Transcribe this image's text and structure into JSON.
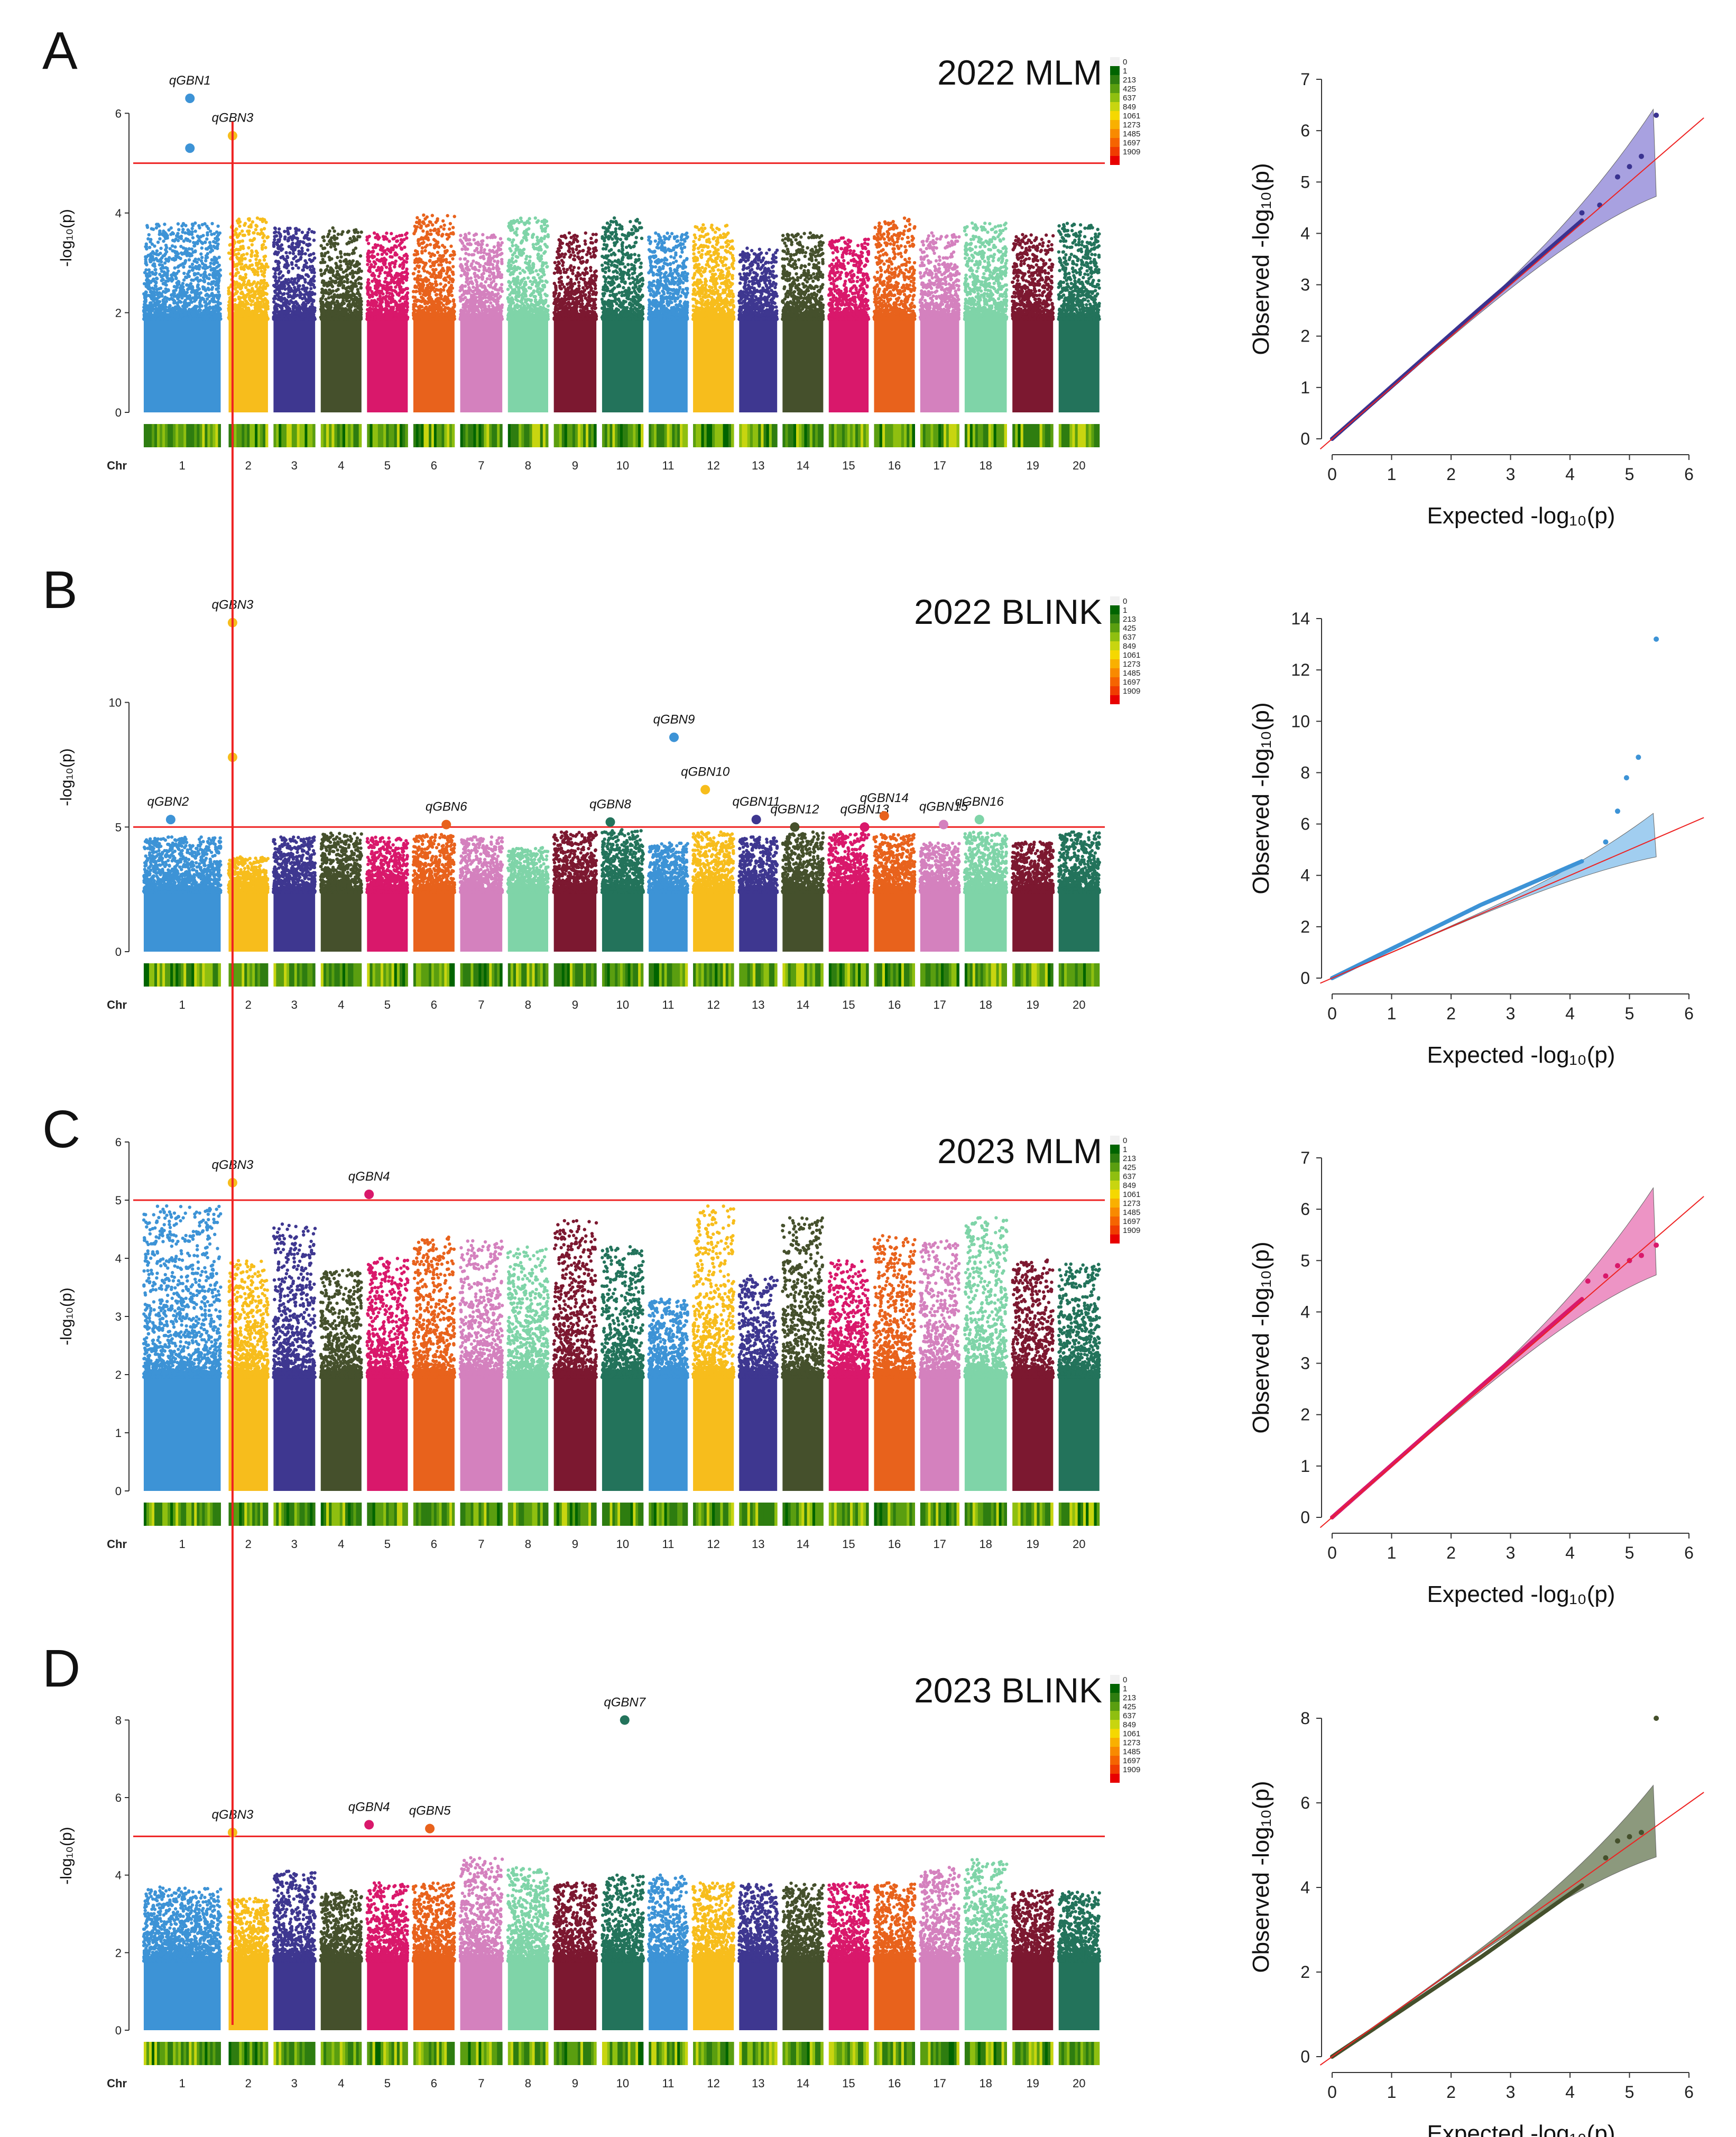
{
  "colors": {
    "chr": [
      "#3d93d6",
      "#f7bd1c",
      "#3e3790",
      "#45502c",
      "#d9186b",
      "#e8621c",
      "#d481be",
      "#7fd4a8",
      "#7c1830",
      "#23735b"
    ],
    "threshold": "#ee2222",
    "qq_fill": {
      "A": "#7a6fd0",
      "B": "#6eb3e8",
      "C": "#e35aa6",
      "D": "#4f6238"
    },
    "qq_point": {
      "A": "#3a3390",
      "B": "#3d93d6",
      "C": "#d9186b",
      "D": "#45502c"
    },
    "legend": [
      "#f1f1f1",
      "#006400",
      "#2e7d10",
      "#5a9e10",
      "#8fbf10",
      "#c8d510",
      "#f5d800",
      "#f9b000",
      "#f88a00",
      "#f56400",
      "#f03c00",
      "#e80000"
    ]
  },
  "chromosomes": [
    "1",
    "2",
    "3",
    "4",
    "5",
    "6",
    "7",
    "8",
    "9",
    "10",
    "11",
    "12",
    "13",
    "14",
    "15",
    "16",
    "17",
    "18",
    "19",
    "20"
  ],
  "chr_axis_label": "Chr",
  "ylabel": "-log₁₀(p)",
  "qq_xlabel": "Expected  -log₁₀(p)",
  "qq_ylabel": "Observed  -log₁₀(p)",
  "legend_labels": [
    "0",
    "1",
    "213",
    "425",
    "637",
    "849",
    "1061",
    "1273",
    "1485",
    "1697",
    "1909"
  ],
  "chart_data": [
    {
      "type": "scatter",
      "panel": "A",
      "title": "2022 MLM",
      "ylim": [
        0,
        7
      ],
      "yticks": [
        0,
        2,
        4,
        6
      ],
      "threshold": 5,
      "noise": {
        "base": 2.2,
        "peak": [
          3.8,
          3.9,
          3.7,
          3.7,
          3.6,
          4.0,
          3.6,
          3.9,
          3.6,
          3.9,
          3.6,
          3.8,
          3.3,
          3.6,
          3.5,
          3.9,
          3.6,
          3.8,
          3.6,
          3.8
        ]
      },
      "labeled_snps": [
        {
          "name": "qGBN1",
          "chr": 1,
          "pos": 0.6,
          "value": 6.3
        },
        {
          "name": "",
          "chr": 1,
          "pos": 0.6,
          "value": 5.3
        },
        {
          "name": "qGBN3",
          "chr": 2,
          "pos": 0.1,
          "value": 5.55
        }
      ],
      "qq": {
        "xlim": [
          0,
          6
        ],
        "ylim": [
          0,
          7
        ],
        "xticks": [
          0,
          1,
          2,
          3,
          4,
          5,
          6
        ],
        "yticks": [
          0,
          1,
          2,
          3,
          4,
          5,
          6,
          7
        ],
        "points_tail": [
          [
            4.2,
            4.4
          ],
          [
            4.5,
            4.55
          ],
          [
            4.8,
            5.1
          ],
          [
            5.0,
            5.3
          ],
          [
            5.2,
            5.5
          ],
          [
            5.45,
            6.3
          ]
        ]
      }
    },
    {
      "type": "scatter",
      "panel": "B",
      "title": "2022 BLINK",
      "ylim": [
        0,
        14
      ],
      "yticks": [
        0,
        5,
        10
      ],
      "threshold": 5,
      "noise": {
        "base": 2.8,
        "peak": [
          4.6,
          3.8,
          4.6,
          4.8,
          4.6,
          4.7,
          4.6,
          4.2,
          4.8,
          4.9,
          4.4,
          4.8,
          4.6,
          4.8,
          4.8,
          4.7,
          4.4,
          4.8,
          4.4,
          4.8
        ]
      },
      "labeled_snps": [
        {
          "name": "qGBN2",
          "chr": 1,
          "pos": 0.35,
          "value": 5.3
        },
        {
          "name": "qGBN3",
          "chr": 2,
          "pos": 0.1,
          "value": 13.2
        },
        {
          "name": "",
          "chr": 2,
          "pos": 0.1,
          "value": 7.8
        },
        {
          "name": "qGBN6",
          "chr": 6,
          "pos": 0.8,
          "value": 5.1
        },
        {
          "name": "qGBN8",
          "chr": 10,
          "pos": 0.2,
          "value": 5.2
        },
        {
          "name": "qGBN9",
          "chr": 11,
          "pos": 0.65,
          "value": 8.6
        },
        {
          "name": "qGBN10",
          "chr": 12,
          "pos": 0.3,
          "value": 6.5
        },
        {
          "name": "qGBN11",
          "chr": 13,
          "pos": 0.45,
          "value": 5.3
        },
        {
          "name": "qGBN12",
          "chr": 14,
          "pos": 0.3,
          "value": 5.0
        },
        {
          "name": "qGBN13",
          "chr": 15,
          "pos": 0.9,
          "value": 5.0
        },
        {
          "name": "qGBN14",
          "chr": 16,
          "pos": 0.25,
          "value": 5.45
        },
        {
          "name": "qGBN15",
          "chr": 17,
          "pos": 0.6,
          "value": 5.1
        },
        {
          "name": "qGBN16",
          "chr": 18,
          "pos": 0.35,
          "value": 5.3
        }
      ],
      "qq": {
        "xlim": [
          0,
          6
        ],
        "ylim": [
          0,
          14
        ],
        "xticks": [
          0,
          1,
          2,
          3,
          4,
          5,
          6
        ],
        "yticks": [
          0,
          2,
          4,
          6,
          8,
          10,
          12,
          14
        ],
        "points_tail": [
          [
            4.6,
            5.3
          ],
          [
            4.8,
            6.5
          ],
          [
            4.95,
            7.8
          ],
          [
            5.15,
            8.6
          ],
          [
            5.45,
            13.2
          ]
        ]
      }
    },
    {
      "type": "scatter",
      "panel": "C",
      "title": "2023 MLM",
      "ylim": [
        0,
        6
      ],
      "yticks": [
        0,
        1,
        2,
        3,
        4,
        5,
        6
      ],
      "threshold": 5,
      "noise": {
        "base": 2.3,
        "peak": [
          4.9,
          4.0,
          4.6,
          3.8,
          4.0,
          4.4,
          4.3,
          4.2,
          4.7,
          4.2,
          3.3,
          4.9,
          3.7,
          4.7,
          4.0,
          4.4,
          4.3,
          4.7,
          4.0,
          3.9
        ]
      },
      "labeled_snps": [
        {
          "name": "qGBN3",
          "chr": 2,
          "pos": 0.1,
          "value": 5.3
        },
        {
          "name": "qGBN4",
          "chr": 5,
          "pos": 0.05,
          "value": 5.1
        }
      ],
      "qq": {
        "xlim": [
          0,
          6
        ],
        "ylim": [
          0,
          7
        ],
        "xticks": [
          0,
          1,
          2,
          3,
          4,
          5,
          6
        ],
        "yticks": [
          0,
          1,
          2,
          3,
          4,
          5,
          6,
          7
        ],
        "points_tail": [
          [
            4.3,
            4.6
          ],
          [
            4.6,
            4.7
          ],
          [
            4.8,
            4.9
          ],
          [
            5.0,
            5.0
          ],
          [
            5.2,
            5.1
          ],
          [
            5.45,
            5.3
          ]
        ]
      }
    },
    {
      "type": "scatter",
      "panel": "D",
      "title": "2023 BLINK",
      "ylim": [
        0,
        9
      ],
      "yticks": [
        0,
        2,
        4,
        6,
        8
      ],
      "threshold": 5,
      "noise": {
        "base": 2.1,
        "peak": [
          3.7,
          3.4,
          4.1,
          3.6,
          3.8,
          3.8,
          4.5,
          4.2,
          3.8,
          4.0,
          4.0,
          3.8,
          3.8,
          3.8,
          3.8,
          3.8,
          4.2,
          4.4,
          3.6,
          3.6
        ]
      },
      "labeled_snps": [
        {
          "name": "qGBN3",
          "chr": 2,
          "pos": 0.1,
          "value": 5.1
        },
        {
          "name": "qGBN4",
          "chr": 5,
          "pos": 0.05,
          "value": 5.3
        },
        {
          "name": "qGBN5",
          "chr": 6,
          "pos": 0.4,
          "value": 5.2
        },
        {
          "name": "qGBN7",
          "chr": 10,
          "pos": 0.55,
          "value": 8.0
        }
      ],
      "qq": {
        "xlim": [
          0,
          6
        ],
        "ylim": [
          0,
          8.5
        ],
        "xticks": [
          0,
          1,
          2,
          3,
          4,
          5,
          6
        ],
        "yticks": [
          0,
          2,
          4,
          6,
          8
        ],
        "points_tail": [
          [
            4.6,
            4.7
          ],
          [
            4.8,
            5.1
          ],
          [
            5.0,
            5.2
          ],
          [
            5.2,
            5.3
          ],
          [
            5.45,
            8.0
          ]
        ]
      }
    }
  ]
}
